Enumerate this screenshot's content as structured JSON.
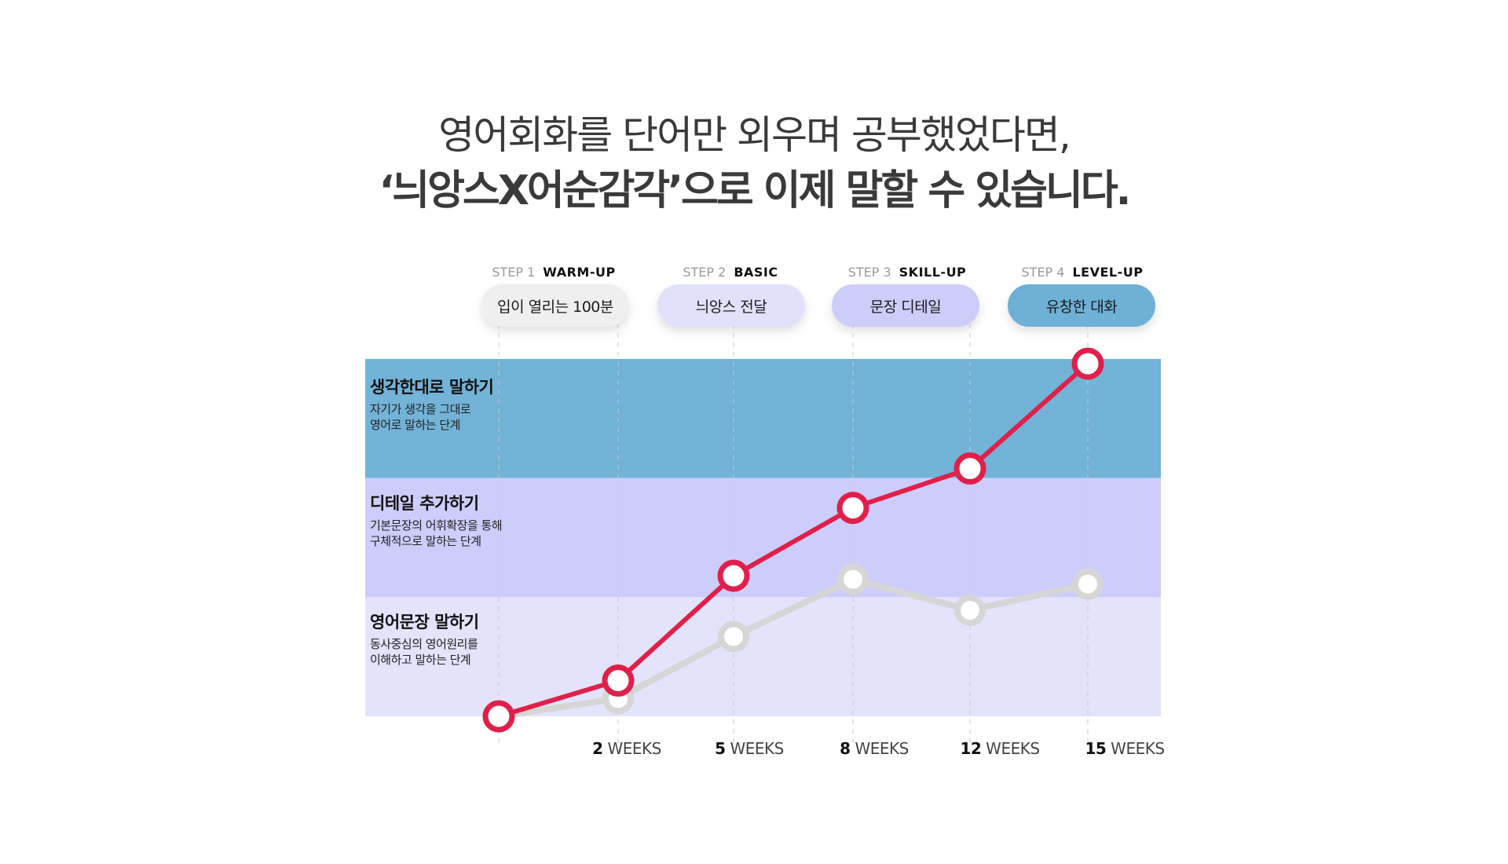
{
  "headline": {
    "line1": "영어회화를 단어만 외우며 공부했었다면,",
    "line2": "‘늬앙스X어순감각’으로 이제 말할 수 있습니다."
  },
  "steps": [
    {
      "num": "STEP 1",
      "name": "WARM-UP",
      "pill": "입이 열리는 100분",
      "color": "#efefef"
    },
    {
      "num": "STEP 2",
      "name": "BASIC",
      "pill": "늬앙스 전달",
      "color": "#e1e1fb"
    },
    {
      "num": "STEP 3",
      "name": "SKILL-UP",
      "pill": "문장 디테일",
      "color": "#cdcdfa"
    },
    {
      "num": "STEP 4",
      "name": "LEVEL-UP",
      "pill": "유창한 대화",
      "color": "#6eb0d6"
    }
  ],
  "bands": [
    {
      "title": "생각한대로 말하기",
      "desc1": "자기가 생각을 그대로",
      "desc2": "영어로 말하는 단계",
      "color": "#72b3d7"
    },
    {
      "title": "디테일 추가하기",
      "desc1": "기본문장의 어휘확장을 통해",
      "desc2": "구체적으로 말하는 단계",
      "color": "#cdcdfb"
    },
    {
      "title": "영어문장 말하기",
      "desc1": "동사중심의 영어원리를",
      "desc2": "이해하고 말하는 단계",
      "color": "#e3e3fb"
    }
  ],
  "chart_data": {
    "type": "line",
    "x": [
      0,
      2,
      5,
      8,
      12,
      15
    ],
    "categories": [
      "",
      "2 WEEKS",
      "5 WEEKS",
      "8 WEEKS",
      "12 WEEKS",
      "15 WEEKS"
    ],
    "tick_labels": [
      {
        "num": "2",
        "unit": "WEEKS"
      },
      {
        "num": "5",
        "unit": "WEEKS"
      },
      {
        "num": "8",
        "unit": "WEEKS"
      },
      {
        "num": "12",
        "unit": "WEEKS"
      },
      {
        "num": "15",
        "unit": "WEEKS"
      }
    ],
    "ylim": [
      0,
      3
    ],
    "series": [
      {
        "color": "#e0204a",
        "values": [
          0.0,
          0.3,
          1.18,
          1.75,
          2.08,
          2.96
        ]
      },
      {
        "color": "#d6d6d6",
        "values": [
          0.0,
          0.15,
          0.67,
          1.15,
          0.89,
          1.11
        ]
      }
    ],
    "grid": "vertical-dashed"
  }
}
